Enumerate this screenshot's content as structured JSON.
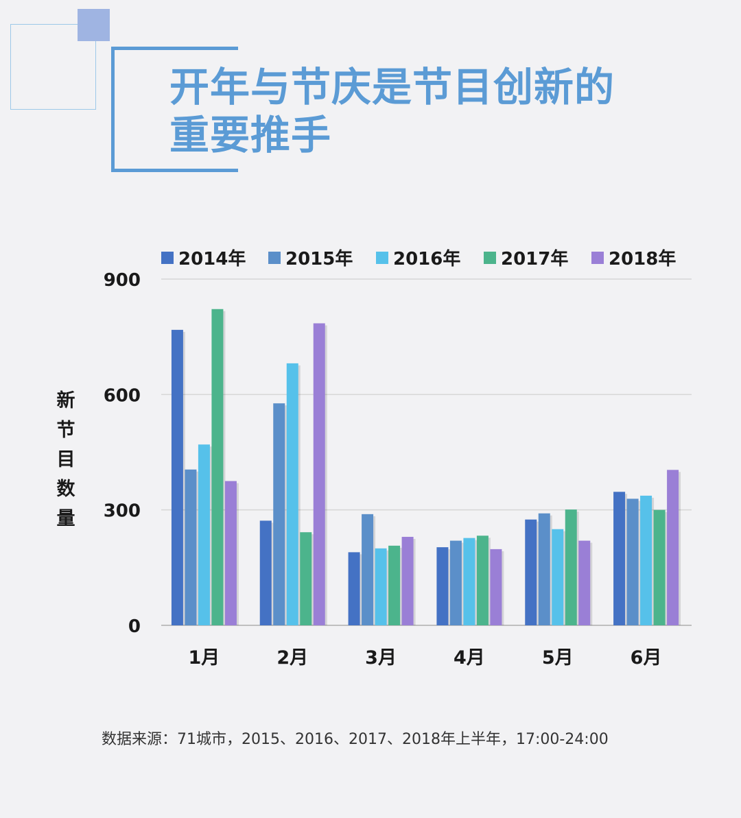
{
  "title": {
    "line1": "开年与节庆是节目创新的",
    "line2": "重要推手"
  },
  "source_note": "数据来源：71城市，2015、2016、2017、2018年上半年，17:00-24:00",
  "colors": {
    "title": "#5b9bd5",
    "series": [
      "#4472c4",
      "#5b8fc9",
      "#56c1ea",
      "#4cb48c",
      "#9a7fd6"
    ]
  },
  "chart_data": {
    "type": "bar",
    "categories": [
      "1月",
      "2月",
      "3月",
      "4月",
      "5月",
      "6月"
    ],
    "series": [
      {
        "name": "2014年",
        "values": [
          768,
          272,
          190,
          203,
          275,
          347
        ]
      },
      {
        "name": "2015年",
        "values": [
          405,
          577,
          289,
          220,
          291,
          329
        ]
      },
      {
        "name": "2016年",
        "values": [
          470,
          681,
          200,
          227,
          250,
          337
        ]
      },
      {
        "name": "2017年",
        "values": [
          822,
          242,
          207,
          233,
          301,
          300
        ]
      },
      {
        "name": "2018年",
        "values": [
          375,
          785,
          230,
          198,
          220,
          404
        ]
      }
    ],
    "yticks": [
      "0",
      "300",
      "600",
      "900"
    ],
    "ylabel": "新节目数量",
    "xlabel": "",
    "ylim": [
      0,
      900
    ],
    "grid": true,
    "legend": "top"
  }
}
